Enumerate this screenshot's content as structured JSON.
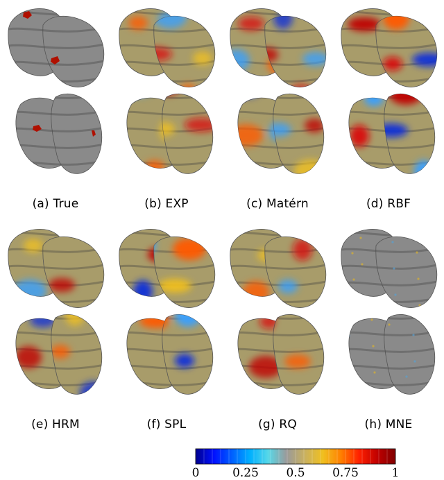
{
  "panels": [
    {
      "id": "a",
      "caption": "(a) True"
    },
    {
      "id": "b",
      "caption": "(b) EXP"
    },
    {
      "id": "c",
      "caption": "(c) Matérn"
    },
    {
      "id": "d",
      "caption": "(d) RBF"
    },
    {
      "id": "e",
      "caption": "(e) HRM"
    },
    {
      "id": "f",
      "caption": "(f) SPL"
    },
    {
      "id": "g",
      "caption": "(g) RQ"
    },
    {
      "id": "h",
      "caption": "(h) MNE"
    }
  ],
  "colorbar": {
    "ticks": [
      "0",
      "0.25",
      "0.5",
      "0.75",
      "1"
    ],
    "colors": [
      "#00008f",
      "#0010ff",
      "#0060ff",
      "#00b0ff",
      "#58d8e8",
      "#9a9a9a",
      "#c8b060",
      "#f0c020",
      "#ff8000",
      "#ff2000",
      "#c00000",
      "#800000"
    ]
  }
}
